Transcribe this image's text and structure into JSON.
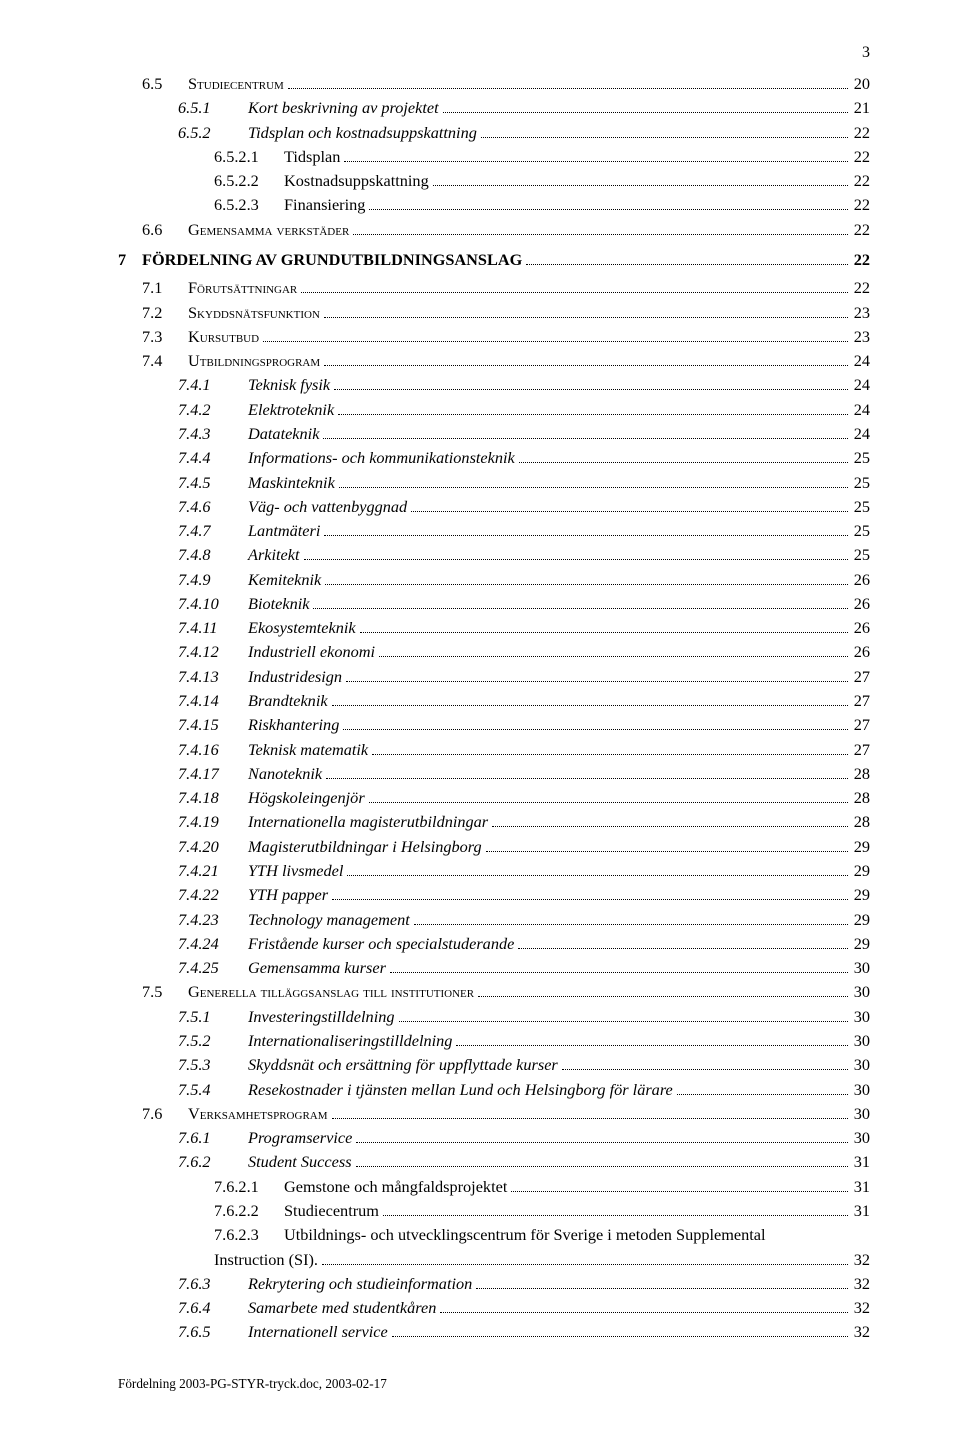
{
  "page_number": "3",
  "footer": "Fördelning 2003-PG-STYR-tryck.doc, 2003-02-17",
  "rows": [
    {
      "indent": 1,
      "numClass": "num-w1",
      "num": "6.5",
      "style": "smallcaps",
      "label": "Studiecentrum",
      "page": "20"
    },
    {
      "indent": 2,
      "numClass": "num-w2",
      "num": "6.5.1",
      "style": "italic",
      "label": "Kort beskrivning av projektet",
      "page": "21"
    },
    {
      "indent": 2,
      "numClass": "num-w2",
      "num": "6.5.2",
      "style": "italic",
      "label": "Tidsplan och kostnadsuppskattning",
      "page": "22"
    },
    {
      "indent": 3,
      "numClass": "num-w3",
      "num": "6.5.2.1",
      "style": "",
      "label": "Tidsplan",
      "page": "22"
    },
    {
      "indent": 3,
      "numClass": "num-w3",
      "num": "6.5.2.2",
      "style": "",
      "label": "Kostnadsuppskattning",
      "page": "22"
    },
    {
      "indent": 3,
      "numClass": "num-w3",
      "num": "6.5.2.3",
      "style": "",
      "label": "Finansiering",
      "page": "22"
    },
    {
      "indent": 1,
      "numClass": "num-w1",
      "num": "6.6",
      "style": "smallcaps",
      "label": "Gemensamma verkstäder",
      "page": "22"
    },
    {
      "indent": 0,
      "chapter": true,
      "num": "7",
      "label": "FÖRDELNING AV GRUNDUTBILDNINGSANSLAG",
      "page": "22"
    },
    {
      "indent": 1,
      "numClass": "num-w1",
      "num": "7.1",
      "style": "smallcaps",
      "label": "Förutsättningar",
      "page": "22"
    },
    {
      "indent": 1,
      "numClass": "num-w1",
      "num": "7.2",
      "style": "smallcaps",
      "label": "Skyddsnätsfunktion",
      "page": "23"
    },
    {
      "indent": 1,
      "numClass": "num-w1",
      "num": "7.3",
      "style": "smallcaps",
      "label": "Kursutbud",
      "page": "23"
    },
    {
      "indent": 1,
      "numClass": "num-w1",
      "num": "7.4",
      "style": "smallcaps",
      "label": "Utbildningsprogram",
      "page": "24"
    },
    {
      "indent": 2,
      "numClass": "num-w2",
      "num": "7.4.1",
      "style": "italic",
      "label": "Teknisk fysik",
      "page": "24"
    },
    {
      "indent": 2,
      "numClass": "num-w2",
      "num": "7.4.2",
      "style": "italic",
      "label": "Elektroteknik",
      "page": "24"
    },
    {
      "indent": 2,
      "numClass": "num-w2",
      "num": "7.4.3",
      "style": "italic",
      "label": "Datateknik",
      "page": "24"
    },
    {
      "indent": 2,
      "numClass": "num-w2",
      "num": "7.4.4",
      "style": "italic",
      "label": "Informations- och kommunikationsteknik",
      "page": "25"
    },
    {
      "indent": 2,
      "numClass": "num-w2",
      "num": "7.4.5",
      "style": "italic",
      "label": "Maskinteknik",
      "page": "25"
    },
    {
      "indent": 2,
      "numClass": "num-w2",
      "num": "7.4.6",
      "style": "italic",
      "label": "Väg- och vattenbyggnad",
      "page": "25"
    },
    {
      "indent": 2,
      "numClass": "num-w2",
      "num": "7.4.7",
      "style": "italic",
      "label": "Lantmäteri",
      "page": "25"
    },
    {
      "indent": 2,
      "numClass": "num-w2",
      "num": "7.4.8",
      "style": "italic",
      "label": "Arkitekt",
      "page": "25"
    },
    {
      "indent": 2,
      "numClass": "num-w2",
      "num": "7.4.9",
      "style": "italic",
      "label": "Kemiteknik",
      "page": "26"
    },
    {
      "indent": 2,
      "numClass": "num-w2",
      "num": "7.4.10",
      "style": "italic",
      "label": "Bioteknik",
      "page": "26"
    },
    {
      "indent": 2,
      "numClass": "num-w2",
      "num": "7.4.11",
      "style": "italic",
      "label": "Ekosystemteknik",
      "page": "26"
    },
    {
      "indent": 2,
      "numClass": "num-w2",
      "num": "7.4.12",
      "style": "italic",
      "label": "Industriell ekonomi",
      "page": "26"
    },
    {
      "indent": 2,
      "numClass": "num-w2",
      "num": "7.4.13",
      "style": "italic",
      "label": "Industridesign",
      "page": "27"
    },
    {
      "indent": 2,
      "numClass": "num-w2",
      "num": "7.4.14",
      "style": "italic",
      "label": "Brandteknik",
      "page": "27"
    },
    {
      "indent": 2,
      "numClass": "num-w2",
      "num": "7.4.15",
      "style": "italic",
      "label": "Riskhantering",
      "page": "27"
    },
    {
      "indent": 2,
      "numClass": "num-w2",
      "num": "7.4.16",
      "style": "italic",
      "label": "Teknisk matematik",
      "page": "27"
    },
    {
      "indent": 2,
      "numClass": "num-w2",
      "num": "7.4.17",
      "style": "italic",
      "label": "Nanoteknik",
      "page": "28"
    },
    {
      "indent": 2,
      "numClass": "num-w2",
      "num": "7.4.18",
      "style": "italic",
      "label": "Högskoleingenjör",
      "page": "28"
    },
    {
      "indent": 2,
      "numClass": "num-w2",
      "num": "7.4.19",
      "style": "italic",
      "label": "Internationella magisterutbildningar",
      "page": "28"
    },
    {
      "indent": 2,
      "numClass": "num-w2",
      "num": "7.4.20",
      "style": "italic",
      "label": "Magisterutbildningar i Helsingborg",
      "page": "29"
    },
    {
      "indent": 2,
      "numClass": "num-w2",
      "num": "7.4.21",
      "style": "italic",
      "label": "YTH livsmedel",
      "page": "29"
    },
    {
      "indent": 2,
      "numClass": "num-w2",
      "num": "7.4.22",
      "style": "italic",
      "label": "YTH  papper",
      "page": "29"
    },
    {
      "indent": 2,
      "numClass": "num-w2",
      "num": "7.4.23",
      "style": "italic",
      "label": "Technology management",
      "page": "29"
    },
    {
      "indent": 2,
      "numClass": "num-w2",
      "num": "7.4.24",
      "style": "italic",
      "label": "Fristående kurser och specialstuderande",
      "page": "29"
    },
    {
      "indent": 2,
      "numClass": "num-w2",
      "num": "7.4.25",
      "style": "italic",
      "label": "Gemensamma kurser",
      "page": "30"
    },
    {
      "indent": 1,
      "numClass": "num-w1",
      "num": "7.5",
      "style": "smallcaps",
      "label": "Generella tilläggsanslag till institutioner",
      "page": "30"
    },
    {
      "indent": 2,
      "numClass": "num-w2",
      "num": "7.5.1",
      "style": "italic",
      "label": "Investeringstilldelning",
      "page": "30"
    },
    {
      "indent": 2,
      "numClass": "num-w2",
      "num": "7.5.2",
      "style": "italic",
      "label": "Internationaliseringstilldelning",
      "page": "30"
    },
    {
      "indent": 2,
      "numClass": "num-w2",
      "num": "7.5.3",
      "style": "italic",
      "label": "Skyddsnät och ersättning för uppflyttade kurser",
      "page": "30"
    },
    {
      "indent": 2,
      "numClass": "num-w2",
      "num": "7.5.4",
      "style": "italic",
      "label": "Resekostnader i tjänsten mellan Lund och Helsingborg för lärare",
      "page": "30"
    },
    {
      "indent": 1,
      "numClass": "num-w1",
      "num": "7.6",
      "style": "smallcaps",
      "label": "Verksamhetsprogram",
      "page": "30"
    },
    {
      "indent": 2,
      "numClass": "num-w2",
      "num": "7.6.1",
      "style": "italic",
      "label": "Programservice",
      "page": "30"
    },
    {
      "indent": 2,
      "numClass": "num-w2",
      "num": "7.6.2",
      "style": "italic",
      "label": "Student Success",
      "page": "31"
    },
    {
      "indent": 3,
      "numClass": "num-w3",
      "num": "7.6.2.1",
      "style": "",
      "label": "Gemstone och mångfaldsprojektet",
      "page": "31"
    },
    {
      "indent": 3,
      "numClass": "num-w3",
      "num": "7.6.2.2",
      "style": "",
      "label": "Studiecentrum",
      "page": "31"
    },
    {
      "indent": 3,
      "numClass": "num-w3",
      "num": "7.6.2.3",
      "style": "",
      "label": "Utbildnings- och utvecklingscentrum för Sverige i metoden Supplemental",
      "wrap": true
    },
    {
      "indent": 3,
      "wrapcont": true,
      "label": "Instruction (SI).",
      "page": "32"
    },
    {
      "indent": 2,
      "numClass": "num-w2",
      "num": "7.6.3",
      "style": "italic",
      "label": "Rekrytering och studieinformation",
      "page": "32"
    },
    {
      "indent": 2,
      "numClass": "num-w2",
      "num": "7.6.4",
      "style": "italic",
      "label": "Samarbete med studentkåren",
      "page": "32"
    },
    {
      "indent": 2,
      "numClass": "num-w2",
      "num": "7.6.5",
      "style": "italic",
      "label": "Internationell service",
      "page": "32"
    }
  ]
}
